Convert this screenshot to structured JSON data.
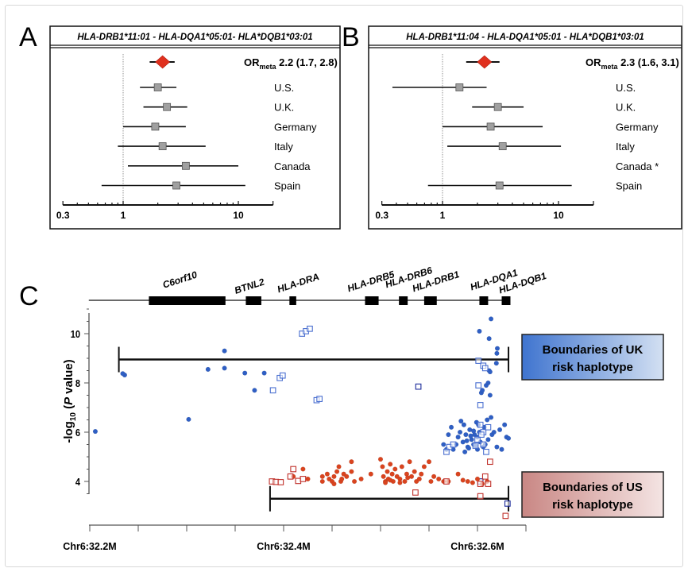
{
  "chart_data": [
    {
      "type": "forest",
      "panel": "A",
      "title": "HLA-DRB1*11:01 - HLA-DQA1*05:01- HLA*DQB1*03:01",
      "meta": {
        "label": "OR",
        "sub": "meta",
        "value_text": "2.2 (1.7, 2.8)",
        "or": 2.2,
        "lo": 1.7,
        "hi": 2.8
      },
      "studies": [
        {
          "name": "U.S.",
          "or": 2.0,
          "lo": 1.4,
          "hi": 2.9
        },
        {
          "name": "U.K.",
          "or": 2.4,
          "lo": 1.5,
          "hi": 3.6
        },
        {
          "name": "Germany",
          "or": 1.9,
          "lo": 1.0,
          "hi": 3.5
        },
        {
          "name": "Italy",
          "or": 2.2,
          "lo": 0.9,
          "hi": 5.2
        },
        {
          "name": "Canada",
          "or": 3.5,
          "lo": 1.1,
          "hi": 10.0
        },
        {
          "name": "Spain",
          "or": 2.9,
          "lo": 0.65,
          "hi": 11.5
        }
      ],
      "xscale": "log",
      "xlim": [
        0.3,
        20
      ],
      "reference_line": 1,
      "xticks": [
        "0.3",
        "1",
        "10"
      ]
    },
    {
      "type": "forest",
      "panel": "B",
      "title": "HLA-DRB1*11:04 - HLA-DQA1*05:01 - HLA*DQB1*03:01",
      "meta": {
        "label": "OR",
        "sub": "meta",
        "value_text": "2.3 (1.6, 3.1)",
        "or": 2.3,
        "lo": 1.6,
        "hi": 3.1
      },
      "studies": [
        {
          "name": "U.S.",
          "or": 1.4,
          "lo": 0.37,
          "hi": 2.4
        },
        {
          "name": "U.K.",
          "or": 3.0,
          "lo": 1.8,
          "hi": 5.0
        },
        {
          "name": "Germany",
          "or": 2.6,
          "lo": 1.0,
          "hi": 7.3
        },
        {
          "name": "Italy",
          "or": 3.3,
          "lo": 1.1,
          "hi": 10.5
        },
        {
          "name": "Canada *",
          "or": null,
          "lo": null,
          "hi": null
        },
        {
          "name": "Spain",
          "or": 3.1,
          "lo": 0.75,
          "hi": 13.0
        }
      ],
      "xscale": "log",
      "xlim": [
        0.3,
        20
      ],
      "reference_line": 1,
      "xticks": [
        "0.3",
        "1",
        "10"
      ]
    },
    {
      "type": "scatter",
      "panel": "C",
      "ylabel_main": "-log",
      "ylabel_sub": "10",
      "ylabel_rest": " (P value)",
      "ylim": [
        2.5,
        11
      ],
      "yticks": [
        4,
        6,
        8,
        10
      ],
      "xlim": [
        32.2,
        32.65
      ],
      "xticks": [
        {
          "value": 32.2,
          "label": "Chr6:32.2M"
        },
        {
          "value": 32.4,
          "label": "Chr6:32.4M"
        },
        {
          "value": 32.6,
          "label": "Chr6:32.6M"
        }
      ],
      "genes": [
        {
          "name": "C6orf10",
          "start": 32.261,
          "end": 32.34
        },
        {
          "name": "BTNL2",
          "start": 32.361,
          "end": 32.377
        },
        {
          "name": "HLA-DRA",
          "start": 32.406,
          "end": 32.413
        },
        {
          "name": "HLA-DRB5",
          "start": 32.484,
          "end": 32.498
        },
        {
          "name": "HLA-DRB6",
          "start": 32.519,
          "end": 32.528
        },
        {
          "name": "HLA-DRB1",
          "start": 32.545,
          "end": 32.558
        },
        {
          "name": "HLA-DQA1",
          "start": 32.602,
          "end": 32.611
        },
        {
          "name": "HLA-DQB1",
          "start": 32.625,
          "end": 32.634
        }
      ],
      "gene_track": [
        32.199,
        32.632
      ],
      "haplotypes": [
        {
          "name": "UK",
          "label_line1": "Boundaries of UK",
          "label_line2": "risk haplotype",
          "start": 32.23,
          "end": 32.632,
          "y": 8.95,
          "color": "#4a7fcf"
        },
        {
          "name": "US",
          "label_line1": "Boundaries of US",
          "label_line2": "risk haplotype",
          "start": 32.386,
          "end": 32.632,
          "y": 3.3,
          "color": "#c87a78"
        }
      ],
      "series": [
        {
          "name": "UK-snp",
          "marker": "circle",
          "color": "#2f5fc4",
          "points": [
            [
              32.2057,
              6.03
            ],
            [
              32.236,
              8.32
            ],
            [
              32.234,
              8.38
            ],
            [
              32.302,
              6.52
            ],
            [
              32.322,
              8.55
            ],
            [
              32.339,
              9.3
            ],
            [
              32.339,
              8.6
            ],
            [
              32.36,
              8.4
            ],
            [
              32.37,
              7.7
            ],
            [
              32.38,
              8.4
            ],
            [
              32.575,
              5.3
            ],
            [
              32.578,
              5.5
            ],
            [
              32.58,
              5.8
            ],
            [
              32.582,
              6.0
            ],
            [
              32.585,
              5.6
            ],
            [
              32.586,
              6.3
            ],
            [
              32.588,
              5.9
            ],
            [
              32.59,
              5.4
            ],
            [
              32.592,
              6.1
            ],
            [
              32.594,
              5.7
            ],
            [
              32.596,
              5.5
            ],
            [
              32.597,
              5.9
            ],
            [
              32.599,
              6.4
            ],
            [
              32.6,
              5.3
            ],
            [
              32.6,
              5.8
            ],
            [
              32.602,
              6.0
            ],
            [
              32.603,
              5.6
            ],
            [
              32.604,
              7.6
            ],
            [
              32.605,
              7.7
            ],
            [
              32.606,
              5.4
            ],
            [
              32.607,
              6.2
            ],
            [
              32.608,
              5.5
            ],
            [
              32.609,
              7.9
            ],
            [
              32.61,
              6.5
            ],
            [
              32.611,
              5.7
            ],
            [
              32.612,
              8.5
            ],
            [
              32.613,
              7.5
            ],
            [
              32.614,
              6.6
            ],
            [
              32.615,
              5.9
            ],
            [
              32.617,
              6.0
            ],
            [
              32.62,
              5.4
            ],
            [
              32.623,
              6.1
            ],
            [
              32.625,
              5.3
            ],
            [
              32.628,
              6.3
            ],
            [
              32.63,
              5.8
            ],
            [
              32.632,
              5.75
            ],
            [
              32.568,
              5.3
            ],
            [
              32.57,
              5.9
            ],
            [
              32.565,
              5.5
            ],
            [
              32.583,
              6.45
            ],
            [
              32.587,
              5.2
            ],
            [
              32.573,
              6.2
            ],
            [
              32.591,
              5.35
            ],
            [
              32.598,
              5.45
            ],
            [
              32.601,
              6.3
            ],
            [
              32.596,
              6.05
            ],
            [
              32.589,
              5.65
            ],
            [
              32.593,
              5.85
            ],
            [
              32.602,
              10.1
            ],
            [
              32.614,
              10.6
            ],
            [
              32.612,
              9.8
            ],
            [
              32.6205,
              9.4
            ],
            [
              32.62,
              9.2
            ],
            [
              32.6195,
              8.8
            ],
            [
              32.613,
              8.45
            ],
            [
              32.611,
              8.0
            ]
          ]
        },
        {
          "name": "UK-allele",
          "marker": "open-square",
          "color": "#4a6fd0",
          "points": [
            [
              32.419,
              10.0
            ],
            [
              32.423,
              10.1
            ],
            [
              32.427,
              10.2
            ],
            [
              32.396,
              8.2
            ],
            [
              32.399,
              8.3
            ],
            [
              32.389,
              7.7
            ],
            [
              32.434,
              7.3
            ],
            [
              32.437,
              7.35
            ],
            [
              32.601,
              8.9
            ],
            [
              32.606,
              8.7
            ],
            [
              32.608,
              8.6
            ],
            [
              32.601,
              7.9
            ],
            [
              32.603,
              7.1
            ],
            [
              32.603,
              6.3
            ],
            [
              32.606,
              6.0
            ],
            [
              32.6,
              5.7
            ],
            [
              32.606,
              5.5
            ],
            [
              32.609,
              5.2
            ],
            [
              32.604,
              5.9
            ],
            [
              32.611,
              6.2
            ],
            [
              32.598,
              5.45
            ],
            [
              32.571,
              5.4
            ],
            [
              32.575,
              5.5
            ],
            [
              32.568,
              5.2
            ]
          ]
        },
        {
          "name": "allele-dark",
          "marker": "open-square",
          "color": "#1a2a9a",
          "points": [
            [
              32.539,
              7.85
            ],
            [
              32.603,
              4.0
            ],
            [
              32.631,
              3.1
            ]
          ]
        },
        {
          "name": "US-snp",
          "marker": "circle",
          "color": "#d9441f",
          "points": [
            [
              32.41,
              4.2
            ],
            [
              32.42,
              4.5
            ],
            [
              32.425,
              4.1
            ],
            [
              32.44,
              4.0
            ],
            [
              32.445,
              4.3
            ],
            [
              32.447,
              4.1
            ],
            [
              32.45,
              4.0
            ],
            [
              32.452,
              4.2
            ],
            [
              32.455,
              4.4
            ],
            [
              32.457,
              4.6
            ],
            [
              32.459,
              4.0
            ],
            [
              32.46,
              4.1
            ],
            [
              32.462,
              4.3
            ],
            [
              32.47,
              4.8
            ],
            [
              32.47,
              4.4
            ],
            [
              32.473,
              4.0
            ],
            [
              32.48,
              4.1
            ],
            [
              32.49,
              4.3
            ],
            [
              32.5,
              4.9
            ],
            [
              32.502,
              4.6
            ],
            [
              32.503,
              4.2
            ],
            [
              32.505,
              4.0
            ],
            [
              32.507,
              4.4
            ],
            [
              32.508,
              4.1
            ],
            [
              32.51,
              4.7
            ],
            [
              32.512,
              4.3
            ],
            [
              32.513,
              4.0
            ],
            [
              32.515,
              4.5
            ],
            [
              32.517,
              4.2
            ],
            [
              32.52,
              4.1
            ],
            [
              32.522,
              4.6
            ],
            [
              32.525,
              4.0
            ],
            [
              32.527,
              4.3
            ],
            [
              32.53,
              4.8
            ],
            [
              32.532,
              4.2
            ],
            [
              32.535,
              4.4
            ],
            [
              32.537,
              4.0
            ],
            [
              32.54,
              4.1
            ],
            [
              32.542,
              4.3
            ],
            [
              32.545,
              4.6
            ],
            [
              32.55,
              4.8
            ],
            [
              32.552,
              4.0
            ],
            [
              32.555,
              4.2
            ],
            [
              32.56,
              4.1
            ],
            [
              32.565,
              4.0
            ],
            [
              32.57,
              4.0
            ],
            [
              32.58,
              4.3
            ],
            [
              32.585,
              4.05
            ],
            [
              32.59,
              4.0
            ],
            [
              32.595,
              3.95
            ],
            [
              32.6,
              4.1
            ],
            [
              32.605,
              3.9
            ],
            [
              32.61,
              4.0
            ],
            [
              32.505,
              3.95
            ],
            [
              32.51,
              4.05
            ],
            [
              32.52,
              3.95
            ],
            [
              32.528,
              4.15
            ],
            [
              32.465,
              4.2
            ],
            [
              32.452,
              3.9
            ],
            [
              32.44,
              4.2
            ]
          ]
        },
        {
          "name": "US-allele",
          "marker": "open-square",
          "color": "#c0302a",
          "points": [
            [
              32.388,
              4.0
            ],
            [
              32.392,
              3.98
            ],
            [
              32.397,
              3.97
            ],
            [
              32.41,
              4.5
            ],
            [
              32.407,
              4.2
            ],
            [
              32.415,
              4.02
            ],
            [
              32.42,
              4.1
            ],
            [
              32.603,
              3.9
            ],
            [
              32.608,
              4.2
            ],
            [
              32.611,
              3.9
            ],
            [
              32.613,
              4.8
            ],
            [
              32.536,
              3.55
            ],
            [
              32.603,
              3.4
            ],
            [
              32.629,
              2.6
            ],
            [
              32.568,
              4.0
            ]
          ]
        }
      ]
    }
  ],
  "panel_letters": [
    "A",
    "B",
    "C"
  ]
}
